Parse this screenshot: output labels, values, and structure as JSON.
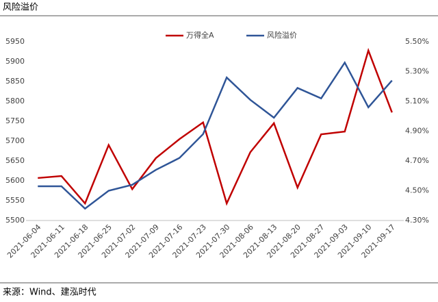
{
  "chart_data": {
    "type": "line",
    "title": "风险溢价",
    "source": "来源：Wind、建泓时代",
    "categories": [
      "2021-06-04",
      "2021-06-11",
      "2021-06-18",
      "2021-06-25",
      "2021-07-02",
      "2021-07-09",
      "2021-07-16",
      "2021-07-23",
      "2021-07-30",
      "2021-08-06",
      "2021-08-13",
      "2021-08-20",
      "2021-08-27",
      "2021-09-03",
      "2021-09-10",
      "2021-09-17"
    ],
    "series": [
      {
        "name": "万得全A",
        "color": "#c00000",
        "values": [
          5607,
          5612,
          5543,
          5690,
          5579,
          5657,
          5705,
          5747,
          5543,
          5672,
          5745,
          5583,
          5717,
          5724,
          5928,
          5772
        ]
      },
      {
        "name": "风险溢价",
        "color": "#2f5597",
        "axis": "y2",
        "values": [
          4.53,
          4.53,
          4.38,
          4.5,
          4.54,
          4.64,
          4.72,
          4.88,
          5.26,
          5.11,
          4.99,
          5.19,
          5.12,
          5.36,
          5.06,
          5.24
        ]
      }
    ],
    "ylim": [
      5500,
      5950
    ],
    "yticks": [
      5500,
      5550,
      5600,
      5650,
      5700,
      5750,
      5800,
      5850,
      5900,
      5950
    ],
    "y2lim": [
      4.3,
      5.5
    ],
    "y2ticks": [
      {
        "value": 4.3,
        "label": "4.30%"
      },
      {
        "value": 4.5,
        "label": "4.50%"
      },
      {
        "value": 4.7,
        "label": "4.70%"
      },
      {
        "value": 4.9,
        "label": "4.90%"
      },
      {
        "value": 5.1,
        "label": "5.10%"
      },
      {
        "value": 5.3,
        "label": "5.30%"
      },
      {
        "value": 5.5,
        "label": "5.50%"
      }
    ],
    "legend": "top"
  }
}
